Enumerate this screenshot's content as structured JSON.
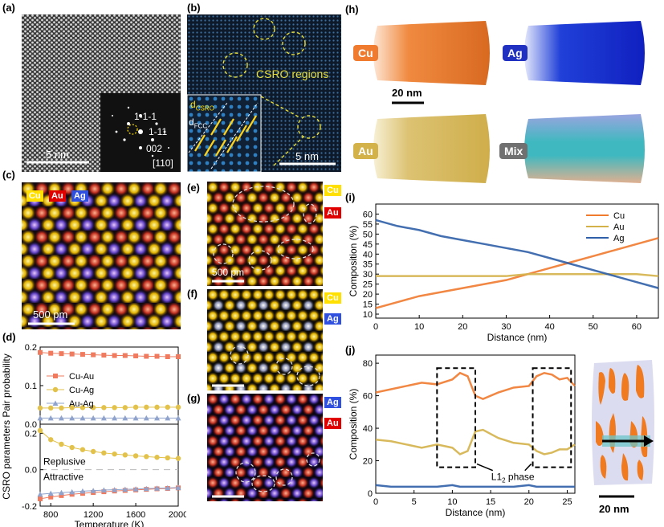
{
  "panel_labels": {
    "a": "(a)",
    "b": "(b)",
    "c": "(c)",
    "d": "(d)",
    "e": "(e)",
    "f": "(f)",
    "g": "(g)",
    "h": "(h)",
    "i": "(i)",
    "j": "(j)"
  },
  "panel_a": {
    "fft_spots": [
      "1-1-1",
      "1-11",
      "002"
    ],
    "zone_axis": "[110]",
    "scalebar": "5 nm"
  },
  "panel_b": {
    "annotation": "CSRO regions",
    "d_csro": "d",
    "d_csro_sub": "CSRO",
    "d_fcc": "d",
    "d_fcc_sub": "FCC",
    "scalebar": "5 nm"
  },
  "panel_c": {
    "elements": [
      "Cu",
      "Au",
      "Ag"
    ],
    "scalebar": "500 pm"
  },
  "panel_e": {
    "elements": [
      "Cu",
      "Au"
    ],
    "scalebar": "500 pm"
  },
  "panel_f": {
    "elements": [
      "Cu",
      "Ag"
    ]
  },
  "panel_g": {
    "elements": [
      "Ag",
      "Au"
    ]
  },
  "panel_h": {
    "labels": [
      "Cu",
      "Ag",
      "Au",
      "Mix"
    ],
    "scalebar": "20 nm"
  },
  "panel_j3d": {
    "scalebar": "20 nm"
  },
  "colors": {
    "Cu": "#f07a2e",
    "Au": "#d4b24a",
    "Ag": "#2f5fa8",
    "Mix": "#707070",
    "CuAu": "#f07a5e",
    "CuAg": "#e2c24a",
    "AuAg": "#8fa3cc",
    "yellow": "#ffe000",
    "red": "#e00000",
    "blue": "#3050e0"
  },
  "chart_data": [
    {
      "type": "scatter",
      "panel": "d",
      "ylabel": "CSRO parameters Pair probability",
      "xlabel": "Temperature (K)",
      "xlim": [
        700,
        2000
      ],
      "xticks": [
        800,
        1200,
        1600,
        2000
      ],
      "top": {
        "ylim": [
          0,
          0.2
        ],
        "yticks": [
          0,
          0.1,
          0.2
        ],
        "x": [
          700,
          800,
          900,
          1000,
          1100,
          1200,
          1300,
          1400,
          1500,
          1600,
          1700,
          1800,
          1900,
          2000
        ],
        "series": [
          {
            "name": "Cu-Au",
            "marker": "square",
            "values": [
              0.186,
              0.184,
              0.183,
              0.182,
              0.181,
              0.18,
              0.179,
              0.178,
              0.178,
              0.177,
              0.176,
              0.176,
              0.175,
              0.175
            ]
          },
          {
            "name": "Cu-Ag",
            "marker": "circle",
            "values": [
              0.042,
              0.042,
              0.042,
              0.043,
              0.043,
              0.043,
              0.043,
              0.043,
              0.043,
              0.044,
              0.044,
              0.044,
              0.044,
              0.044
            ]
          },
          {
            "name": "Au-Ag",
            "marker": "triangle",
            "values": [
              0.016,
              0.016,
              0.016,
              0.016,
              0.016,
              0.016,
              0.016,
              0.016,
              0.016,
              0.016,
              0.016,
              0.016,
              0.016,
              0.016
            ]
          }
        ]
      },
      "bottom": {
        "ylim": [
          -0.2,
          0.25
        ],
        "yticks": [
          -0.2,
          0.0,
          0.2
        ],
        "annotations": [
          "Replusive",
          "Attractive"
        ],
        "x": [
          700,
          800,
          900,
          1000,
          1100,
          1200,
          1300,
          1400,
          1500,
          1600,
          1700,
          1800,
          1900,
          2000
        ],
        "series": [
          {
            "name": "Cu-Au",
            "marker": "square",
            "values": [
              -0.16,
              -0.15,
              -0.142,
              -0.135,
              -0.13,
              -0.125,
              -0.121,
              -0.117,
              -0.114,
              -0.111,
              -0.108,
              -0.105,
              -0.103,
              -0.1
            ]
          },
          {
            "name": "Cu-Ag",
            "marker": "circle",
            "values": [
              0.215,
              0.165,
              0.14,
              0.122,
              0.11,
              0.1,
              0.092,
              0.086,
              0.081,
              0.076,
              0.072,
              0.068,
              0.065,
              0.062
            ]
          },
          {
            "name": "Au-Ag",
            "marker": "triangle",
            "values": [
              -0.135,
              -0.13,
              -0.126,
              -0.122,
              -0.118,
              -0.115,
              -0.112,
              -0.11,
              -0.108,
              -0.106,
              -0.104,
              -0.102,
              -0.1,
              -0.098
            ]
          }
        ]
      }
    },
    {
      "type": "line",
      "panel": "i",
      "ylabel": "Composition (%)",
      "xlabel": "Distance (nm)",
      "xlim": [
        0,
        65
      ],
      "ylim": [
        8,
        65
      ],
      "xticks": [
        0,
        10,
        20,
        30,
        40,
        50,
        60
      ],
      "yticks": [
        10,
        15,
        20,
        25,
        30,
        35,
        40,
        45,
        50,
        55,
        60
      ],
      "x": [
        0,
        5,
        10,
        15,
        20,
        25,
        30,
        35,
        40,
        45,
        50,
        55,
        60,
        65
      ],
      "series": [
        {
          "name": "Cu",
          "values": [
            13,
            16,
            19,
            21,
            23,
            25,
            27,
            30,
            33,
            36,
            39,
            42,
            45,
            48
          ]
        },
        {
          "name": "Au",
          "values": [
            29,
            29,
            29,
            29,
            29,
            29,
            29,
            30,
            30,
            30,
            30,
            30,
            30,
            29
          ]
        },
        {
          "name": "Ag",
          "values": [
            57,
            54,
            52,
            49,
            47,
            45,
            43,
            41,
            38,
            35,
            32,
            29,
            26,
            23
          ]
        }
      ]
    },
    {
      "type": "line",
      "panel": "j",
      "ylabel": "Composition (%)",
      "xlabel": "Distance (nm)",
      "xlim": [
        0,
        26
      ],
      "ylim": [
        0,
        85
      ],
      "xticks": [
        0,
        5,
        10,
        15,
        20,
        25
      ],
      "yticks": [
        0,
        20,
        40,
        60,
        80
      ],
      "annotation": "L1",
      "annotation_sub": "2",
      "annotation_suffix": " phase",
      "x": [
        0,
        2,
        4,
        6,
        8,
        10,
        11,
        12,
        13,
        14,
        16,
        18,
        20,
        21,
        22,
        23,
        24,
        25,
        26
      ],
      "series": [
        {
          "name": "Cu",
          "values": [
            62,
            64,
            66,
            68,
            67,
            70,
            74,
            72,
            60,
            58,
            62,
            65,
            66,
            72,
            74,
            73,
            70,
            71,
            66
          ]
        },
        {
          "name": "Au",
          "values": [
            33,
            32,
            30,
            28,
            30,
            28,
            24,
            26,
            38,
            39,
            34,
            31,
            30,
            26,
            24,
            25,
            27,
            27,
            30
          ]
        },
        {
          "name": "Ag",
          "values": [
            5,
            4,
            4,
            4,
            4,
            5,
            4,
            4,
            4,
            4,
            4,
            4,
            5,
            4,
            4,
            4,
            4,
            4,
            4
          ]
        }
      ]
    }
  ]
}
